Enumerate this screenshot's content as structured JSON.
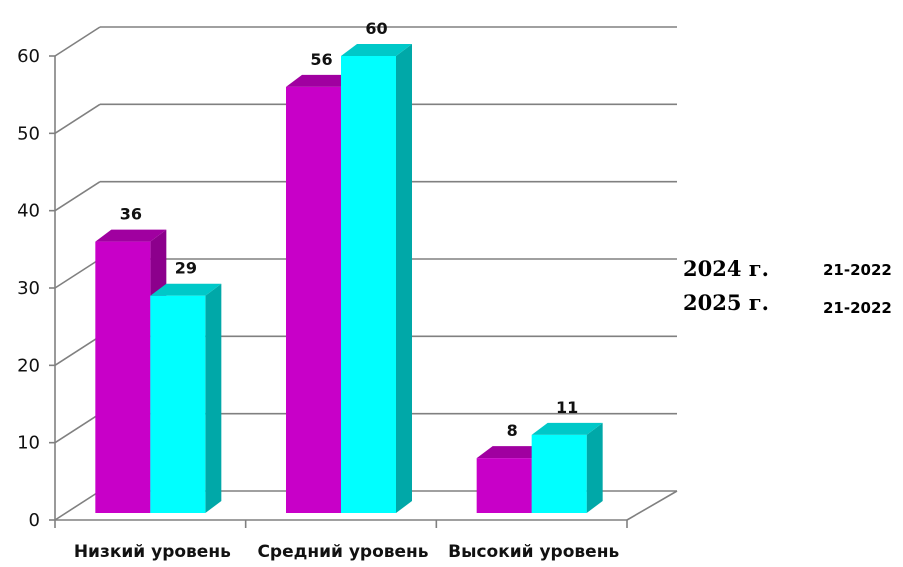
{
  "chart_data": {
    "type": "bar",
    "categories": [
      "Низкий уровень",
      "Средний уровень",
      "Высокий уровень"
    ],
    "series": [
      {
        "name": "2024 г.",
        "values": [
          36,
          56,
          8
        ],
        "color": "#c800c8",
        "side_color": "#8c008c",
        "top_color": "#a000a0"
      },
      {
        "name": "2025 г.",
        "values": [
          29,
          60,
          11
        ],
        "color": "#00ffff",
        "side_color": "#00a8a8",
        "top_color": "#00c8c8"
      }
    ],
    "ylim": [
      0,
      60
    ],
    "yticks": [
      0,
      10,
      20,
      30,
      40,
      50,
      60
    ],
    "grid": true,
    "legend_placement": "right",
    "legend_ghost_labels": [
      "21-2022",
      "21-2022"
    ],
    "gridline_color": "#808080"
  }
}
